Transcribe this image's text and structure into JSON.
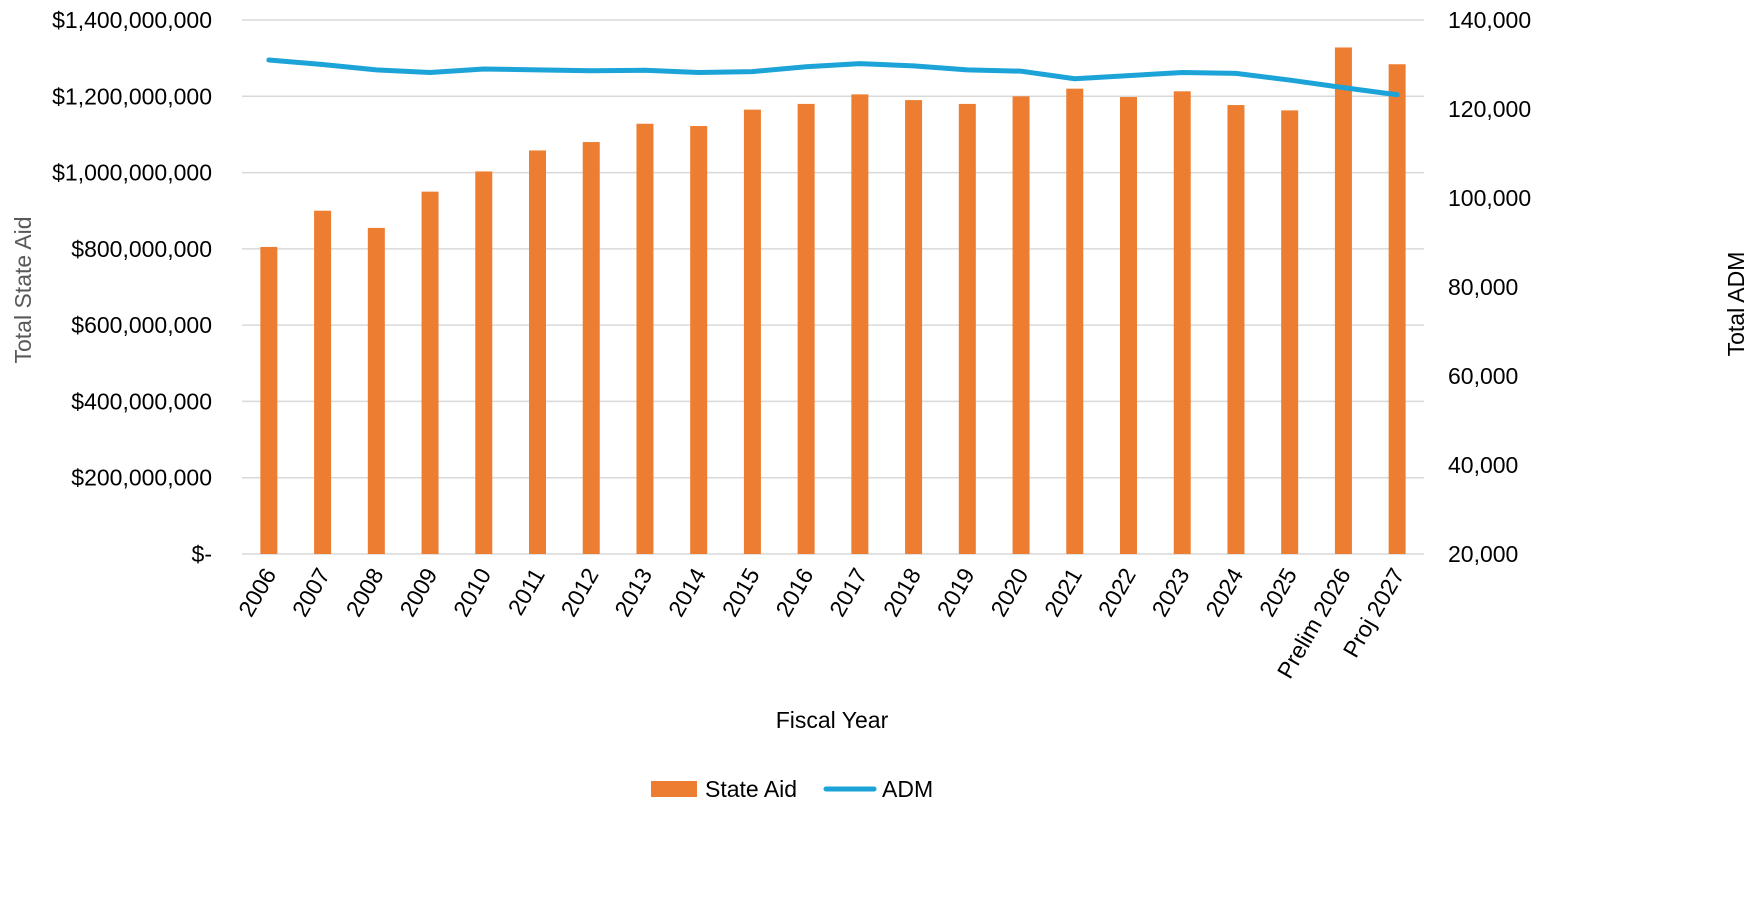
{
  "chart_data": {
    "type": "bar",
    "categories": [
      "2006",
      "2007",
      "2008",
      "2009",
      "2010",
      "2011",
      "2012",
      "2013",
      "2014",
      "2015",
      "2016",
      "2017",
      "2018",
      "2019",
      "2020",
      "2021",
      "2022",
      "2023",
      "2024",
      "2025",
      "Prelim 2026",
      "Proj 2027"
    ],
    "series": [
      {
        "name": "State Aid",
        "type": "bar",
        "axis": "left",
        "color": "#ED7D31",
        "values": [
          805000000,
          900000000,
          855000000,
          950000000,
          1003000000,
          1058000000,
          1080000000,
          1128000000,
          1122000000,
          1165000000,
          1180000000,
          1205000000,
          1190000000,
          1180000000,
          1200000000,
          1220000000,
          1198000000,
          1213000000,
          1177000000,
          1163000000,
          1328000000,
          1284000000
        ]
      },
      {
        "name": "ADM",
        "type": "line",
        "axis": "right",
        "color": "#1CA3D8",
        "values": [
          131000,
          130000,
          128800,
          128200,
          129000,
          128800,
          128600,
          128700,
          128200,
          128400,
          129500,
          130200,
          129700,
          128800,
          128500,
          126800,
          127500,
          128200,
          128000,
          126500,
          124800,
          123200
        ]
      }
    ],
    "xlabel": "Fiscal Year",
    "ylabel": "Total State Aid",
    "y2label": "Total ADM",
    "ylim": [
      0,
      1400000000
    ],
    "y2lim": [
      20000,
      140000
    ],
    "yticks": [
      "$1,400,000,000",
      "$1,200,000,000",
      "$1,000,000,000",
      "$800,000,000",
      "$600,000,000",
      "$400,000,000",
      "$200,000,000",
      "$-"
    ],
    "y2ticks": [
      "140,000",
      "120,000",
      "100,000",
      "80,000",
      "60,000",
      "40,000",
      "20,000"
    ],
    "grid": true,
    "legend_position": "bottom",
    "colors": {
      "gridline": "#D9D9D9",
      "axis_title": "#595959"
    }
  }
}
